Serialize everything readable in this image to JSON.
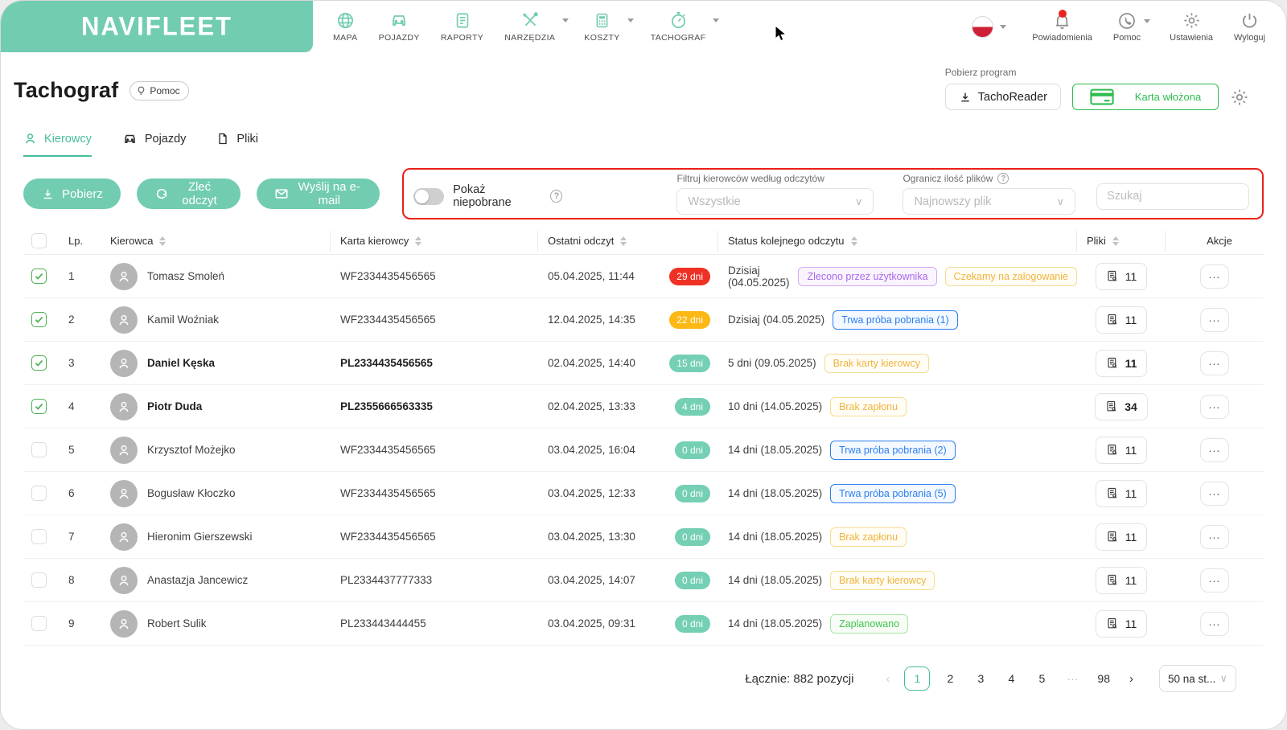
{
  "brand": {
    "logo": "NAVIFLEET",
    "color": "#72ccb1"
  },
  "topnav": {
    "items": [
      {
        "label": "MAPA",
        "icon": "globe",
        "caret": false
      },
      {
        "label": "POJAZDY",
        "icon": "car",
        "caret": false
      },
      {
        "label": "RAPORTY",
        "icon": "document",
        "caret": false
      },
      {
        "label": "NARZĘDZIA",
        "icon": "tools",
        "caret": true
      },
      {
        "label": "KOSZTY",
        "icon": "calculator",
        "caret": true
      },
      {
        "label": "TACHOGRAF",
        "icon": "stopwatch",
        "caret": true
      }
    ]
  },
  "user_menu": {
    "language_flag": "poland-flag",
    "notifications_label": "Powiadomienia",
    "help_label": "Pomoc",
    "settings_label": "Ustawienia",
    "logout_label": "Wyloguj"
  },
  "header": {
    "title": "Tachograf",
    "help_button": "Pomoc",
    "download_program_label": "Pobierz program",
    "tachoreader_button": "TachoReader",
    "card_inserted_button": "Karta włożona",
    "card_color": "#2dbd4e"
  },
  "tabs": [
    {
      "label": "Kierowcy",
      "icon": "person",
      "active": true
    },
    {
      "label": "Pojazdy",
      "icon": "car",
      "active": false
    },
    {
      "label": "Pliki",
      "icon": "file",
      "active": false
    }
  ],
  "actions": {
    "download": "Pobierz",
    "order_reading": "Zleć odczyt",
    "send_email": "Wyślij na e-mail"
  },
  "filters": {
    "show_not_downloaded_label": "Pokaż niepobrane",
    "toggle_state": "off",
    "filter_label": "Filtruj kierowców według odczytów",
    "filter_value": "Wszystkie",
    "limit_label": "Ogranicz ilość plików",
    "limit_value": "Najnowszy plik",
    "search_placeholder": "Szukaj",
    "highlight_color": "#e92117"
  },
  "table": {
    "columns": {
      "lp": "Lp.",
      "driver": "Kierowca",
      "card": "Karta kierowcy",
      "last_read": "Ostatni odczyt",
      "next_status": "Status kolejnego odczytu",
      "files": "Pliki",
      "actions": "Akcje"
    },
    "badge_colors": {
      "red": "#ee3124",
      "yellow": "#fdb813",
      "teal": "#74cfb5"
    },
    "rows": [
      {
        "lp": "1",
        "checked": true,
        "bold": false,
        "name": "Tomasz Smoleń",
        "card": "WF2334435456565",
        "last_read": "05.04.2025, 11:44",
        "days": "29 dni",
        "days_color": "red",
        "next_status": "Dzisiaj (04.05.2025)",
        "status_chips": [
          {
            "text": "Zlecono przez użytkownika",
            "type": "purple"
          },
          {
            "text": "Czekamy na zalogowanie",
            "type": "yellow"
          }
        ],
        "files": "11"
      },
      {
        "lp": "2",
        "checked": true,
        "bold": false,
        "name": "Kamil Woźniak",
        "card": "WF2334435456565",
        "last_read": "12.04.2025, 14:35",
        "days": "22 dni",
        "days_color": "yellow",
        "next_status": "Dzisiaj (04.05.2025)",
        "status_chips": [
          {
            "text": "Trwa próba pobrania (1)",
            "type": "blue"
          }
        ],
        "files": "11"
      },
      {
        "lp": "3",
        "checked": true,
        "bold": true,
        "name": "Daniel Kęska",
        "card": "PL2334435456565",
        "last_read": "02.04.2025, 14:40",
        "days": "15 dni",
        "days_color": "teal",
        "next_status": "5 dni (09.05.2025)",
        "status_chips": [
          {
            "text": "Brak karty kierowcy",
            "type": "yellow"
          }
        ],
        "files": "11"
      },
      {
        "lp": "4",
        "checked": true,
        "bold": true,
        "name": "Piotr Duda",
        "card": "PL2355666563335",
        "last_read": "02.04.2025, 13:33",
        "days": "4 dni",
        "days_color": "teal",
        "next_status": "10 dni (14.05.2025)",
        "status_chips": [
          {
            "text": "Brak zapłonu",
            "type": "yellow"
          }
        ],
        "files": "34"
      },
      {
        "lp": "5",
        "checked": false,
        "bold": false,
        "name": "Krzysztof Możejko",
        "card": "WF2334435456565",
        "last_read": "03.04.2025, 16:04",
        "days": "0 dni",
        "days_color": "teal",
        "next_status": "14 dni (18.05.2025)",
        "status_chips": [
          {
            "text": "Trwa próba pobrania (2)",
            "type": "blue"
          }
        ],
        "files": "11"
      },
      {
        "lp": "6",
        "checked": false,
        "bold": false,
        "name": "Bogusław Kłoczko",
        "card": "WF2334435456565",
        "last_read": "03.04.2025, 12:33",
        "days": "0 dni",
        "days_color": "teal",
        "next_status": "14 dni (18.05.2025)",
        "status_chips": [
          {
            "text": "Trwa próba pobrania (5)",
            "type": "blue"
          }
        ],
        "files": "11"
      },
      {
        "lp": "7",
        "checked": false,
        "bold": false,
        "name": "Hieronim Gierszewski",
        "card": "WF2334435456565",
        "last_read": "03.04.2025, 13:30",
        "days": "0 dni",
        "days_color": "teal",
        "next_status": "14 dni (18.05.2025)",
        "status_chips": [
          {
            "text": "Brak zapłonu",
            "type": "yellow"
          }
        ],
        "files": "11"
      },
      {
        "lp": "8",
        "checked": false,
        "bold": false,
        "name": "Anastazja Jancewicz",
        "card": "PL2334437777333",
        "last_read": "03.04.2025, 14:07",
        "days": "0 dni",
        "days_color": "teal",
        "next_status": "14 dni (18.05.2025)",
        "status_chips": [
          {
            "text": "Brak karty kierowcy",
            "type": "yellow"
          }
        ],
        "files": "11"
      },
      {
        "lp": "9",
        "checked": false,
        "bold": false,
        "name": "Robert Sulik",
        "card": "PL233443444455",
        "last_read": "03.04.2025, 09:31",
        "days": "0 dni",
        "days_color": "teal",
        "next_status": "14 dni (18.05.2025)",
        "status_chips": [
          {
            "text": "Zaplanowano",
            "type": "green"
          }
        ],
        "files": "11"
      }
    ]
  },
  "pagination": {
    "total_label": "Łącznie: 882 pozycji",
    "pages": [
      "1",
      "2",
      "3",
      "4",
      "5",
      "···",
      "98"
    ],
    "current_page": "1",
    "page_size_value": "50 na st..."
  }
}
